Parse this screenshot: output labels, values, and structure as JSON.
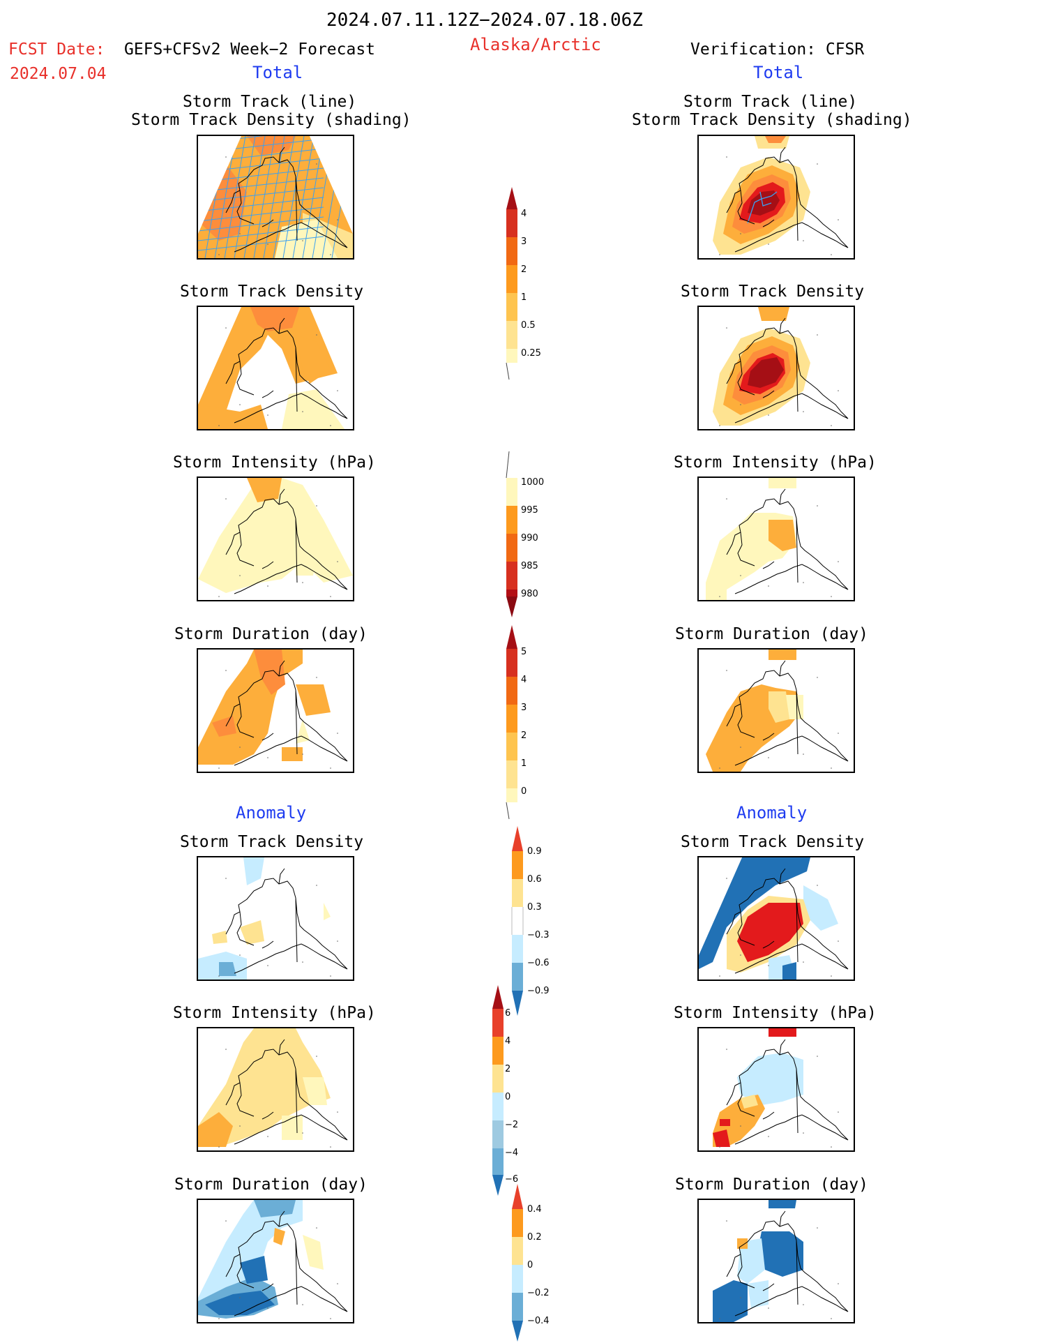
{
  "header": {
    "period": "2024.07.11.12Z−2024.07.18.06Z",
    "fcst_label": "FCST Date:",
    "fcst_model": "GEFS+CFSv2 Week−2 Forecast",
    "fcst_date": "2024.07.04",
    "region": "Alaska/Arctic",
    "verification": "Verification: CFSR",
    "left_total": "Total",
    "right_total": "Total",
    "left_anomaly": "Anomaly",
    "right_anomaly": "Anomaly"
  },
  "titles": {
    "track_line": "Storm Track (line)",
    "track_shading": "Storm Track Density (shading)",
    "density": "Storm Track Density",
    "intensity": "Storm Intensity (hPa)",
    "duration": "Storm Duration (day)"
  },
  "colors": {
    "darkred": "#a50f15",
    "red": "#e31a1c",
    "redorange": "#f03b20",
    "orange": "#fd8d3c",
    "amber": "#fdae3b",
    "yellow": "#fee391",
    "paleyellow": "#fff7bc",
    "paleblue": "#c6ecff",
    "lightblue": "#9ecae1",
    "midblue": "#6baed6",
    "blue": "#2171b5",
    "track": "#3aa0f0"
  },
  "chart_data": [
    {
      "type": "heatmap",
      "id": "fcst-total-track",
      "title": "Storm Track (line)",
      "subtitle": "Storm Track Density (shading)",
      "levels": [
        0.25,
        0.5,
        1,
        2,
        3,
        4
      ]
    },
    {
      "type": "heatmap",
      "id": "cfsr-total-track",
      "title": "Storm Track (line)",
      "subtitle": "Storm Track Density (shading)",
      "levels": [
        0.25,
        0.5,
        1,
        2,
        3,
        4
      ]
    },
    {
      "type": "heatmap",
      "id": "fcst-total-density",
      "title": "Storm Track Density",
      "levels": [
        0.25,
        0.5,
        1,
        2,
        3,
        4
      ]
    },
    {
      "type": "heatmap",
      "id": "cfsr-total-density",
      "title": "Storm Track Density",
      "levels": [
        0.25,
        0.5,
        1,
        2,
        3,
        4
      ]
    },
    {
      "type": "heatmap",
      "id": "fcst-total-intensity",
      "title": "Storm Intensity (hPa)",
      "levels": [
        1000,
        995,
        990,
        985,
        980
      ]
    },
    {
      "type": "heatmap",
      "id": "cfsr-total-intensity",
      "title": "Storm Intensity (hPa)",
      "levels": [
        1000,
        995,
        990,
        985,
        980
      ]
    },
    {
      "type": "heatmap",
      "id": "fcst-total-duration",
      "title": "Storm Duration (day)",
      "levels": [
        0,
        1,
        2,
        3,
        4,
        5
      ]
    },
    {
      "type": "heatmap",
      "id": "cfsr-total-duration",
      "title": "Storm Duration (day)",
      "levels": [
        0,
        1,
        2,
        3,
        4,
        5
      ]
    },
    {
      "type": "heatmap",
      "id": "fcst-anom-density",
      "title": "Storm Track Density",
      "levels": [
        -0.9,
        -0.6,
        -0.3,
        0.3,
        0.6,
        0.9
      ]
    },
    {
      "type": "heatmap",
      "id": "cfsr-anom-density",
      "title": "Storm Track Density",
      "levels": [
        -0.9,
        -0.6,
        -0.3,
        0.3,
        0.6,
        0.9
      ]
    },
    {
      "type": "heatmap",
      "id": "fcst-anom-intensity",
      "title": "Storm Intensity (hPa)",
      "levels": [
        -6,
        -4,
        -2,
        0,
        2,
        4,
        6
      ]
    },
    {
      "type": "heatmap",
      "id": "cfsr-anom-intensity",
      "title": "Storm Intensity (hPa)",
      "levels": [
        -6,
        -4,
        -2,
        0,
        2,
        4,
        6
      ]
    },
    {
      "type": "heatmap",
      "id": "fcst-anom-duration",
      "title": "Storm Duration (day)",
      "levels": [
        -0.4,
        -0.2,
        0,
        0.2,
        0.4
      ]
    },
    {
      "type": "heatmap",
      "id": "cfsr-anom-duration",
      "title": "Storm Duration (day)",
      "levels": [
        -0.4,
        -0.2,
        0,
        0.2,
        0.4
      ]
    }
  ],
  "colorbars": {
    "total_density": {
      "labels": [
        "4",
        "3",
        "2",
        "1",
        "0.5",
        "0.25"
      ]
    },
    "total_intensity": {
      "labels": [
        "1000",
        "995",
        "990",
        "985",
        "980"
      ]
    },
    "total_duration": {
      "labels": [
        "5",
        "4",
        "3",
        "2",
        "1",
        "0"
      ]
    },
    "anom_density": {
      "labels": [
        "0.9",
        "0.6",
        "0.3",
        "−0.3",
        "−0.6",
        "−0.9"
      ]
    },
    "anom_intensity": {
      "labels": [
        "6",
        "4",
        "2",
        "0",
        "−2",
        "−4",
        "−6"
      ]
    },
    "anom_duration": {
      "labels": [
        "0.4",
        "0.2",
        "0",
        "−0.2",
        "−0.4"
      ]
    }
  }
}
